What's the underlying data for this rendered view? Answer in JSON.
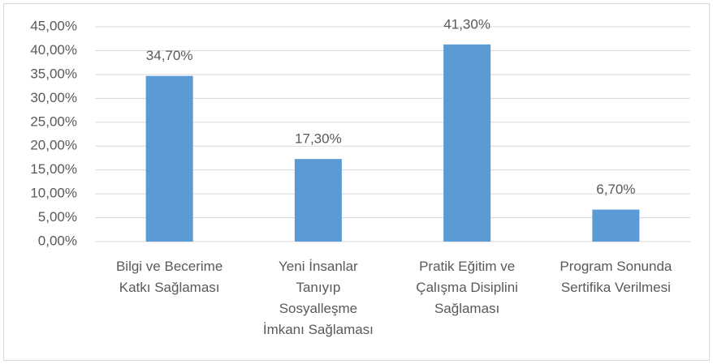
{
  "chart_data": {
    "type": "bar",
    "categories": [
      "Bilgi ve Becerime\nKatkı Sağlaması",
      "Yeni İnsanlar\nTanıyıp\nSosyalleşme\nİmkanı Sağlaması",
      "Pratik Eğitim ve\nÇalışma Disiplini\nSağlaması",
      "Program Sonunda\nSertifika Verilmesi"
    ],
    "values": [
      34.7,
      17.3,
      41.3,
      6.7
    ],
    "value_labels": [
      "34,70%",
      "17,30%",
      "41,30%",
      "6,70%"
    ],
    "color": "#5b9bd5",
    "ylim": [
      0,
      45
    ],
    "yticks": [
      {
        "value": 0,
        "label": "0,00%"
      },
      {
        "value": 5,
        "label": "5,00%"
      },
      {
        "value": 10,
        "label": "10,00%"
      },
      {
        "value": 15,
        "label": "15,00%"
      },
      {
        "value": 20,
        "label": "20,00%"
      },
      {
        "value": 25,
        "label": "25,00%"
      },
      {
        "value": 30,
        "label": "30,00%"
      },
      {
        "value": 35,
        "label": "35,00%"
      },
      {
        "value": 40,
        "label": "40,00%"
      },
      {
        "value": 45,
        "label": "45,00%"
      }
    ],
    "grid": true
  }
}
